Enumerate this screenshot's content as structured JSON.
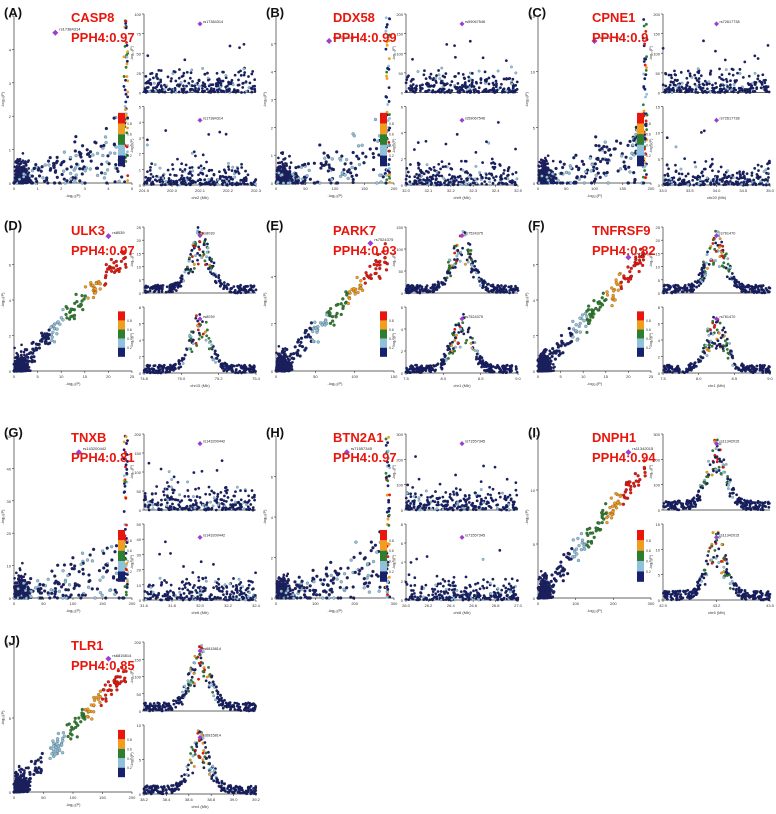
{
  "chart_data": [
    {
      "id": "A",
      "gene": "CASP8",
      "pph4": "PPH4:0.97",
      "snp": "rs17384314",
      "type": "scatter",
      "ylabel": "-log₁₀(P)",
      "xlabel": "-log₁₀(P)",
      "region_xlabel": "chr2 (Mb)",
      "scatter_ticks_y": [
        "0",
        "1",
        "2",
        "3",
        "4",
        "5"
      ],
      "scatter_ticks_x": [
        "0",
        "1",
        "2",
        "3",
        "4",
        "5"
      ],
      "top_ticks_y": [
        "0",
        "25",
        "50",
        "75",
        "100"
      ],
      "bot_ticks_y": [
        "0",
        "1",
        "2",
        "3",
        "4",
        "5"
      ],
      "region_ticks_x": [
        "201.9",
        "202.0",
        "202.1",
        "202.2",
        "202.3"
      ],
      "legend_ticks": [
        "0.8",
        "0.6",
        "0.4",
        "0.2"
      ],
      "profile": {
        "type": "scatter_flat",
        "peak": 0.9,
        "lead_x": 0.35
      }
    },
    {
      "id": "B",
      "gene": "DDX58",
      "pph4": "PPH4:0.99",
      "snp": "rs59067546",
      "type": "scatter",
      "ylabel": "-log₁₀(P)",
      "xlabel": "-log₁₀(P)",
      "region_xlabel": "chr9 (Mb)",
      "scatter_ticks_y": [
        "0",
        "1",
        "2",
        "3",
        "4",
        "5",
        "6"
      ],
      "scatter_ticks_x": [
        "0",
        "50",
        "100",
        "150",
        "200"
      ],
      "top_ticks_y": [
        "0",
        "50",
        "100",
        "150",
        "200"
      ],
      "bot_ticks_y": [
        "0",
        "2",
        "4",
        "6"
      ],
      "region_ticks_x": [
        "32.0",
        "32.1",
        "32.2",
        "32.3",
        "32.4",
        "32.5"
      ],
      "legend_ticks": [
        "0.8",
        "0.6",
        "0.4",
        "0.2"
      ],
      "profile": {
        "type": "scatter_flat",
        "peak": 0.85,
        "lead_x": 0.45
      }
    },
    {
      "id": "C",
      "gene": "CPNE1",
      "pph4": "PPH4:0.9",
      "snp": "rs72617738",
      "type": "scatter",
      "ylabel": "-log₁₀(P)",
      "xlabel": "-log₁₀(P)",
      "region_xlabel": "chr20 (Mb)",
      "scatter_ticks_y": [
        "0",
        "5",
        "10",
        "15"
      ],
      "scatter_ticks_x": [
        "0",
        "50",
        "100",
        "150",
        "200"
      ],
      "top_ticks_y": [
        "0",
        "50",
        "100",
        "150",
        "200"
      ],
      "bot_ticks_y": [
        "0",
        "5",
        "10",
        "15"
      ],
      "region_ticks_x": [
        "33.0",
        "33.5",
        "34.0",
        "34.5",
        "35.0"
      ],
      "legend_ticks": [
        "0.8",
        "0.6",
        "0.4",
        "0.2"
      ],
      "profile": {
        "type": "scatter_flat",
        "peak": 0.85,
        "lead_x": 0.5
      }
    },
    {
      "id": "D",
      "gene": "ULK3",
      "pph4": "PPH4:0.97",
      "snp": "rs8039",
      "type": "scatter",
      "ylabel": "-log₁₀(P)",
      "xlabel": "-log₁₀(P)",
      "region_xlabel": "chr15 (Mb)",
      "scatter_ticks_y": [
        "0",
        "2",
        "4",
        "6",
        "8"
      ],
      "scatter_ticks_x": [
        "0",
        "5",
        "10",
        "15",
        "20",
        "25"
      ],
      "top_ticks_y": [
        "0",
        "5",
        "10",
        "15",
        "20",
        "25"
      ],
      "bot_ticks_y": [
        "0",
        "2",
        "4",
        "6",
        "8"
      ],
      "region_ticks_x": [
        "74.8",
        "75.0",
        "75.2",
        "75.4"
      ],
      "legend_ticks": [
        "0.8",
        "0.6",
        "0.4",
        "0.2"
      ],
      "profile": {
        "type": "peak",
        "peak": 0.95,
        "lead_x": 0.45
      }
    },
    {
      "id": "E",
      "gene": "PARK7",
      "pph4": "PPH4:0.93",
      "snp": "rs7524375",
      "type": "scatter",
      "ylabel": "-log₁₀(P)",
      "xlabel": "-log₁₀(P)",
      "region_xlabel": "chr1 (Mb)",
      "scatter_ticks_y": [
        "0",
        "2",
        "4",
        "6"
      ],
      "scatter_ticks_x": [
        "0",
        "50",
        "100",
        "150"
      ],
      "top_ticks_y": [
        "0",
        "50",
        "100",
        "150"
      ],
      "bot_ticks_y": [
        "0",
        "2",
        "4",
        "6"
      ],
      "region_ticks_x": [
        "7.5",
        "8.0",
        "8.5",
        "9.0"
      ],
      "legend_ticks": [
        "0.8",
        "0.6",
        "0.4",
        "0.2"
      ],
      "profile": {
        "type": "peak",
        "peak": 0.9,
        "lead_x": 0.4
      }
    },
    {
      "id": "F",
      "gene": "TNFRSF9",
      "pph4": "PPH4:0.82",
      "snp": "rs761470",
      "type": "scatter",
      "ylabel": "-log₁₀(P)",
      "xlabel": "-log₁₀(P)",
      "region_xlabel": "chr1 (Mb)",
      "scatter_ticks_y": [
        "0",
        "2",
        "4",
        "6",
        "8"
      ],
      "scatter_ticks_x": [
        "0",
        "5",
        "10",
        "15",
        "20",
        "25"
      ],
      "top_ticks_y": [
        "0",
        "5",
        "10",
        "15",
        "20",
        "25"
      ],
      "bot_ticks_y": [
        "0",
        "2",
        "4",
        "6",
        "8"
      ],
      "region_ticks_x": [
        "7.5",
        "8.0",
        "8.5",
        "9.0"
      ],
      "legend_ticks": [
        "0.8",
        "0.6",
        "0.4",
        "0.2"
      ],
      "profile": {
        "type": "peak",
        "peak": 0.8,
        "lead_x": 0.35
      }
    },
    {
      "id": "G",
      "gene": "TNXB",
      "pph4": "PPH4:0.81",
      "snp": "rs143200442",
      "type": "scatter",
      "ylabel": "-log₁₀(P)",
      "xlabel": "-log₁₀(P)",
      "region_xlabel": "chr6 (Mb)",
      "scatter_ticks_y": [
        "0",
        "10",
        "20",
        "30",
        "40",
        "50"
      ],
      "scatter_ticks_x": [
        "0",
        "50",
        "100",
        "150",
        "200"
      ],
      "top_ticks_y": [
        "0",
        "50",
        "100",
        "150",
        "200"
      ],
      "bot_ticks_y": [
        "0",
        "10",
        "20",
        "30",
        "40",
        "50"
      ],
      "region_ticks_x": [
        "31.6",
        "31.8",
        "32.0",
        "32.2",
        "32.4"
      ],
      "legend_ticks": [
        "0.8",
        "0.6",
        "0.4",
        "0.2"
      ],
      "profile": {
        "type": "scatter_flat",
        "peak": 0.9,
        "lead_x": 0.55
      }
    },
    {
      "id": "H",
      "gene": "BTN2A1",
      "pph4": "PPH4:0.97",
      "snp": "rs71557345",
      "type": "scatter",
      "ylabel": "-log₁₀(P)",
      "xlabel": "-log₁₀(P)",
      "region_xlabel": "chr6 (Mb)",
      "scatter_ticks_y": [
        "0",
        "2",
        "4",
        "6",
        "8"
      ],
      "scatter_ticks_x": [
        "0",
        "100",
        "200",
        "300"
      ],
      "top_ticks_y": [
        "0",
        "100",
        "200",
        "300"
      ],
      "bot_ticks_y": [
        "0",
        "2",
        "4",
        "6",
        "8"
      ],
      "region_ticks_x": [
        "26.0",
        "26.2",
        "26.4",
        "26.6",
        "26.8",
        "27.0"
      ],
      "legend_ticks": [
        "0.8",
        "0.6",
        "0.4",
        "0.2"
      ],
      "profile": {
        "type": "scatter_flat",
        "peak": 0.9,
        "lead_x": 0.6
      }
    },
    {
      "id": "I",
      "gene": "DNPH1",
      "pph4": "PPH4:0.94",
      "snp": "rs11342015",
      "type": "scatter",
      "ylabel": "-log₁₀(P)",
      "xlabel": "-log₁₀(P)",
      "region_xlabel": "chr6 (Mb)",
      "scatter_ticks_y": [
        "0",
        "5",
        "10",
        "15"
      ],
      "scatter_ticks_x": [
        "0",
        "100",
        "200",
        "300"
      ],
      "top_ticks_y": [
        "0",
        "100",
        "200",
        "300"
      ],
      "bot_ticks_y": [
        "0",
        "5",
        "10",
        "15"
      ],
      "region_ticks_x": [
        "42.9",
        "43.2",
        "43.5"
      ],
      "legend_ticks": [
        "0.8",
        "0.6",
        "0.4",
        "0.2"
      ],
      "profile": {
        "type": "peak",
        "peak": 0.9,
        "lead_x": 0.55
      }
    },
    {
      "id": "J",
      "gene": "TLR1",
      "pph4": "PPH4:0.85",
      "snp": "rs6815814",
      "type": "scatter",
      "ylabel": "-log₁₀(P)",
      "xlabel": "-log₁₀(P)",
      "region_xlabel": "chr4 (Mb)",
      "scatter_ticks_y": [
        "0",
        "5",
        "10"
      ],
      "scatter_ticks_x": [
        "0",
        "50",
        "100",
        "150",
        "200"
      ],
      "top_ticks_y": [
        "0",
        "50",
        "100",
        "150",
        "200"
      ],
      "bot_ticks_y": [
        "0",
        "5",
        "10"
      ],
      "region_ticks_x": [
        "38.2",
        "38.4",
        "38.6",
        "38.8",
        "39.0",
        "39.2"
      ],
      "legend_ticks": [
        "0.8",
        "0.6",
        "0.4",
        "0.2"
      ],
      "profile": {
        "type": "peak",
        "peak": 0.9,
        "lead_x": 0.55
      }
    }
  ],
  "colors": {
    "dots": "#1c1f5c",
    "ld_red": "#e8160c",
    "ld_orange": "#f29d1e",
    "ld_green": "#2f7d2e",
    "ld_lightblue": "#8fc1dc",
    "ld_navy": "#17206b",
    "lead": "#9a3fd1",
    "title": "#e8160c"
  }
}
